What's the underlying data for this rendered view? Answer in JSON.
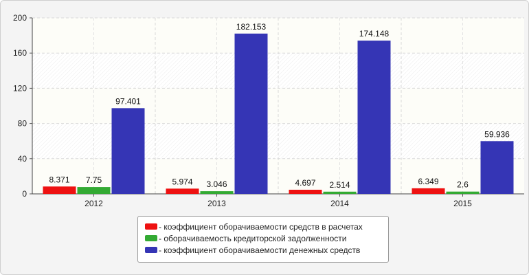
{
  "chart_data": {
    "type": "bar",
    "categories": [
      "2012",
      "2013",
      "2014",
      "2015"
    ],
    "ylim": [
      0,
      200
    ],
    "yticks": [
      0,
      40,
      80,
      120,
      160,
      200
    ],
    "grid": true,
    "legend_position": "bottom",
    "series": [
      {
        "name": "- коэффициент оборачиваемости средств в расчетах",
        "color": "#ee1111",
        "values": [
          8.371,
          5.974,
          4.697,
          6.349
        ],
        "labels": [
          "8.371",
          "5.974",
          "4.697",
          "6.349"
        ]
      },
      {
        "name": "- оборачиваемость кредиторской задолженности",
        "color": "#33aa33",
        "values": [
          7.75,
          3.046,
          2.514,
          2.6
        ],
        "labels": [
          "7.75",
          "3.046",
          "2.514",
          "2.6"
        ]
      },
      {
        "name": "- коэффициент оборачиваемости денежных средств",
        "color": "#3535b5",
        "values": [
          97.401,
          182.153,
          174.148,
          59.936
        ],
        "labels": [
          "97.401",
          "182.153",
          "174.148",
          "59.936"
        ]
      }
    ]
  }
}
